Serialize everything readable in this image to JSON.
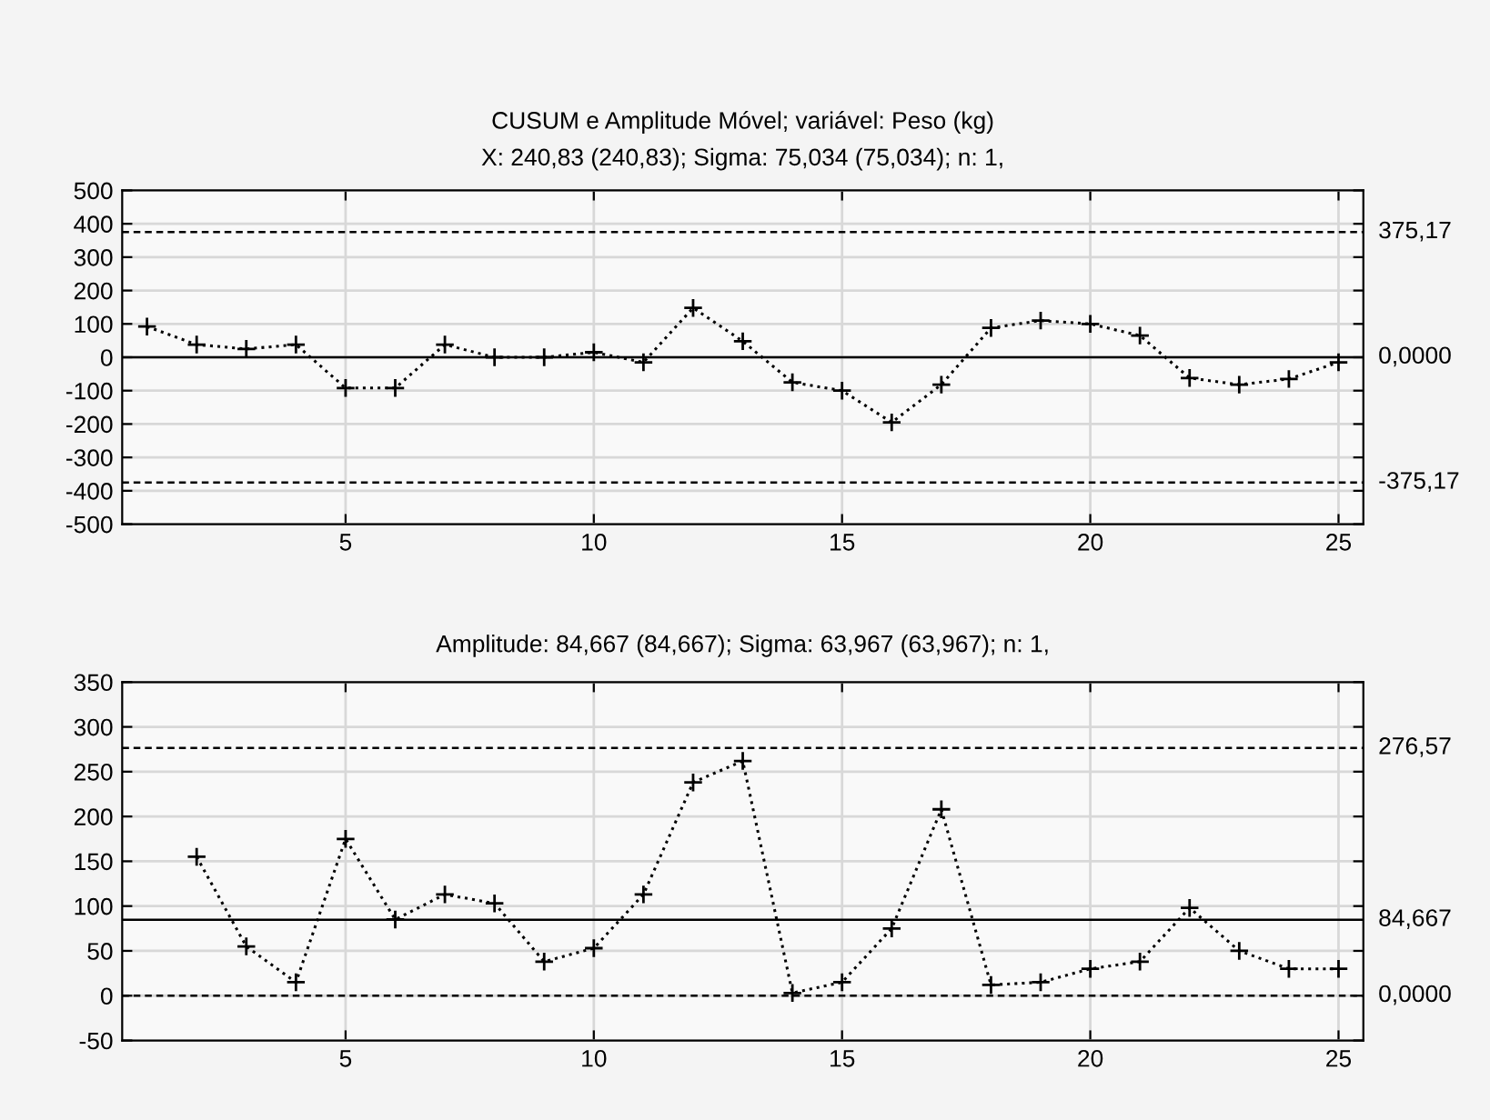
{
  "chart_data": [
    {
      "type": "line",
      "title": "CUSUM e Amplitude Móvel; variável: Peso (kg)",
      "subtitle": "X: 240,83 (240,83); Sigma: 75,034 (75,034); n: 1,",
      "x": [
        1,
        2,
        3,
        4,
        5,
        6,
        7,
        8,
        9,
        10,
        11,
        12,
        13,
        14,
        15,
        16,
        17,
        18,
        19,
        20,
        21,
        22,
        23,
        24,
        25
      ],
      "series": [
        {
          "color": "#000000",
          "values": [
            92,
            38,
            25,
            38,
            -92,
            -92,
            38,
            0,
            0,
            15,
            -15,
            148,
            48,
            -75,
            -100,
            -195,
            -82,
            88,
            110,
            100,
            65,
            -62,
            -82,
            -65,
            -15
          ]
        }
      ],
      "xlim": [
        0.5,
        25.5
      ],
      "xticks": [
        5,
        10,
        15,
        20,
        25
      ],
      "ylim": [
        -500,
        500
      ],
      "yticks": [
        -500,
        -400,
        -300,
        -200,
        -100,
        0,
        100,
        200,
        300,
        400,
        500
      ],
      "ref_lines": [
        {
          "axis": "y",
          "value": 375.17,
          "label": "375,17",
          "line_style": "dashed",
          "color": "#000000"
        },
        {
          "axis": "y",
          "value": 0,
          "label": "0,0000",
          "line_style": "solid",
          "color": "#000000"
        },
        {
          "axis": "y",
          "value": -375.17,
          "label": "-375,17",
          "line_style": "dashed",
          "color": "#000000"
        }
      ],
      "grid": true,
      "legend": false,
      "marker": "cross",
      "line_style": "dotted"
    },
    {
      "type": "line",
      "title": "Amplitude: 84,667 (84,667); Sigma: 63,967 (63,967); n: 1,",
      "x": [
        2,
        3,
        4,
        5,
        6,
        7,
        8,
        9,
        10,
        11,
        12,
        13,
        14,
        15,
        16,
        17,
        18,
        19,
        20,
        21,
        22,
        23,
        24,
        25
      ],
      "series": [
        {
          "color": "#000000",
          "values": [
            155,
            55,
            15,
            175,
            85,
            113,
            103,
            38,
            53,
            113,
            238,
            262,
            3,
            15,
            75,
            208,
            12,
            15,
            30,
            38,
            98,
            50,
            30,
            30
          ]
        }
      ],
      "xlim": [
        0.5,
        25.5
      ],
      "xticks": [
        5,
        10,
        15,
        20,
        25
      ],
      "ylim": [
        -50,
        350
      ],
      "yticks": [
        -50,
        0,
        50,
        100,
        150,
        200,
        250,
        300,
        350
      ],
      "ref_lines": [
        {
          "axis": "y",
          "value": 276.57,
          "label": "276,57",
          "line_style": "dashed",
          "color": "#000000"
        },
        {
          "axis": "y",
          "value": 84.667,
          "label": "84,667",
          "line_style": "solid",
          "color": "#000000"
        },
        {
          "axis": "y",
          "value": 0,
          "label": "0,0000",
          "line_style": "dashed",
          "color": "#000000"
        }
      ],
      "grid": true,
      "legend": false,
      "marker": "cross",
      "line_style": "dotted"
    }
  ]
}
